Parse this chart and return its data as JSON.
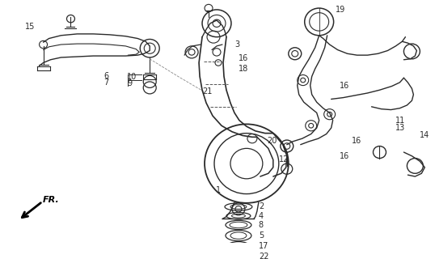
{
  "background_color": "#f5f5f0",
  "line_color": "#2a2a2a",
  "text_color": "#2a2a2a",
  "fig_width": 5.38,
  "fig_height": 3.2,
  "dpi": 100,
  "image_extent": [
    0,
    538,
    0,
    320
  ]
}
